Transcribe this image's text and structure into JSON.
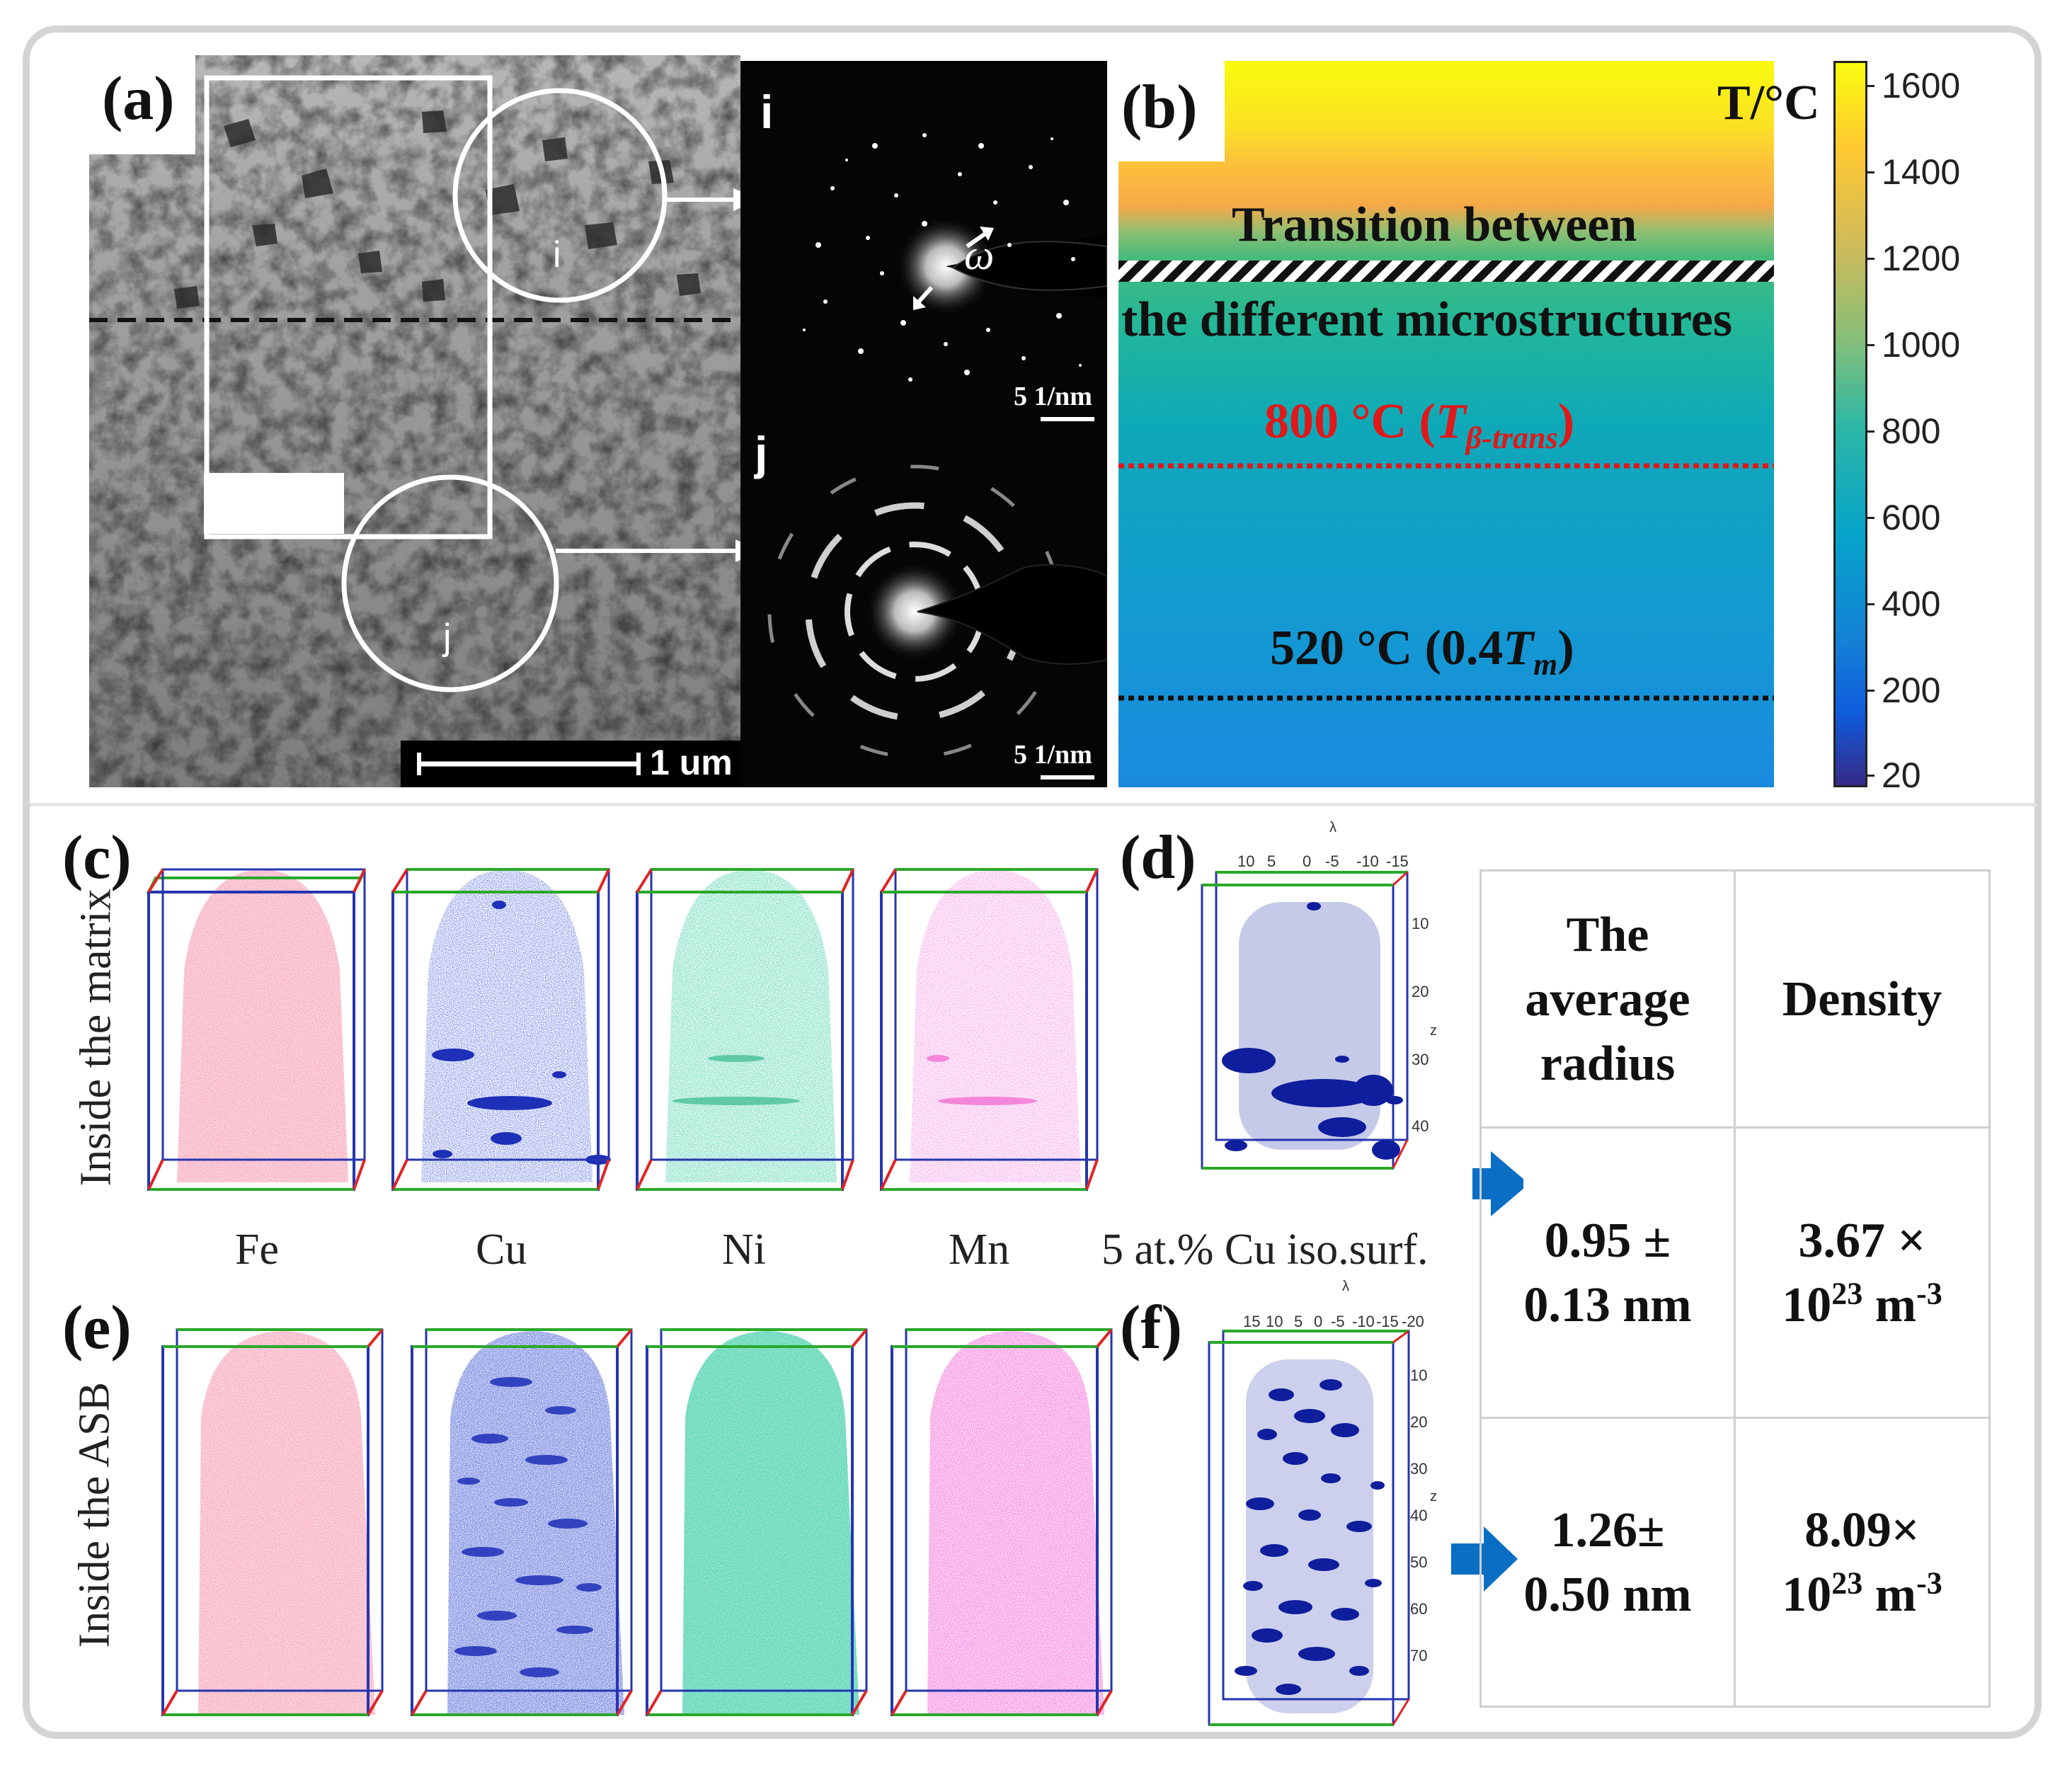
{
  "panels": {
    "a": "(a)",
    "b": "(b)",
    "c": "(c)",
    "d": "(d)",
    "e": "(e)",
    "f": "(f)"
  },
  "tem": {
    "circle_i": "i",
    "circle_j": "j",
    "scale_bar": "1 um"
  },
  "sadp": {
    "i_label": "i",
    "j_label": "j",
    "omega": "ω",
    "scale_i": "5 1/nm",
    "scale_j": "5 1/nm"
  },
  "heatmap": {
    "unit": "T/°C",
    "transition_line1": "Transition between",
    "transition_line2": "the different microstructures",
    "t_beta_value": "800 °C (",
    "t_beta_symbol": "T",
    "t_beta_sub": "β-trans",
    "t_beta_close": ")",
    "t_m_value": "520 °C (0.4",
    "t_m_symbol": "T",
    "t_m_sub": "m",
    "t_m_close": ")",
    "colorbar_ticks": [
      "1600",
      "1400",
      "1200",
      "1000",
      "800",
      "600",
      "400",
      "200",
      "20"
    ]
  },
  "apt": {
    "row_matrix_label": "Inside the matrix",
    "row_asb_label": "Inside the ASB",
    "elements": [
      "Fe",
      "Cu",
      "Ni",
      "Mn"
    ],
    "isosurface_caption": "5 at.% Cu iso.surf.",
    "d_axis_top_label": "λ",
    "d_axis_top_ticks": [
      "10",
      "5",
      "0",
      "-5",
      "-10",
      "-15"
    ],
    "d_axis_side_label": "z",
    "d_axis_side_ticks": [
      "10",
      "20",
      "30",
      "40"
    ],
    "f_axis_top_label": "λ",
    "f_axis_top_ticks": [
      "15",
      "10",
      "5",
      "0",
      "-5",
      "-10",
      "-15",
      "-20"
    ],
    "f_axis_side_label": "z",
    "f_axis_side_ticks": [
      "10",
      "20",
      "30",
      "40",
      "50",
      "60",
      "70"
    ]
  },
  "table": {
    "header_radius_line1": "The",
    "header_radius_line2": "average",
    "header_radius_line3": "radius",
    "header_density": "Density",
    "row1_radius_line1": "0.95 ±",
    "row1_radius_line2": "0.13 nm",
    "row1_density_line1": "3.67 ×",
    "row1_density_base": "10",
    "row1_density_exp": "23",
    "row1_density_unit": " m",
    "row1_density_unit_exp": "-3",
    "row2_radius_line1": "1.26±",
    "row2_radius_line2": "0.50 nm",
    "row2_density_line1": "8.09×",
    "row2_density_base": "10",
    "row2_density_exp": "23",
    "row2_density_unit": " m",
    "row2_density_unit_exp": "-3"
  },
  "colors": {
    "fe": "#f0708a",
    "cu": "#1e2fb8",
    "ni": "#22b07a",
    "mn": "#ee4fc6",
    "arrow": "#0a6fc4",
    "red_line": "#e01818"
  }
}
